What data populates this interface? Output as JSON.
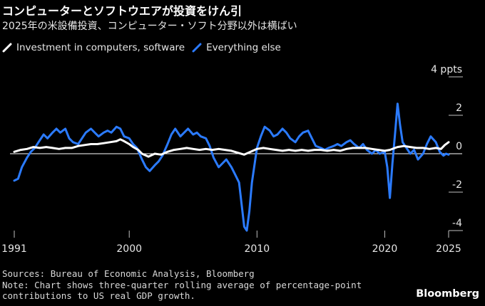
{
  "title": "コンピューターとソフトウエアが投資をけん引",
  "subtitle": "2025年の米設備投資、コンピューター・ソフト分野以外は横ばい",
  "legend": [
    {
      "label": "Investment in computers, software",
      "color": "#ffffff"
    },
    {
      "label": "Everything else",
      "color": "#2b7bff"
    }
  ],
  "footer": {
    "source": "Sources: Bureau of Economic Analysis, Bloomberg",
    "note1": "Note: Chart shows three-quarter rolling average of percentage-point",
    "note2": "contributions to US real GDP growth."
  },
  "brand": "Bloomberg",
  "chart_data": {
    "type": "line",
    "ylim": [
      -4.5,
      4.5
    ],
    "y_ticks": [
      4,
      2,
      0,
      -2,
      -4
    ],
    "y_tick_labels": [
      "4 ppts",
      "2",
      "0",
      "-2",
      "-4"
    ],
    "x_range": [
      1991,
      2025
    ],
    "x_ticks": [
      1991,
      2000,
      2010,
      2020,
      2025
    ],
    "x_tick_labels": [
      "1991",
      "2000",
      "2010",
      "2020",
      "2025"
    ],
    "zero_line": true,
    "series": [
      {
        "name": "Investment in computers, software",
        "color": "#ffffff",
        "points": [
          [
            1991.0,
            0.1
          ],
          [
            1991.5,
            0.2
          ],
          [
            1992.0,
            0.25
          ],
          [
            1992.5,
            0.35
          ],
          [
            1993.0,
            0.3
          ],
          [
            1993.5,
            0.35
          ],
          [
            1994.0,
            0.3
          ],
          [
            1994.5,
            0.25
          ],
          [
            1995.0,
            0.3
          ],
          [
            1995.5,
            0.3
          ],
          [
            1996.0,
            0.4
          ],
          [
            1996.5,
            0.45
          ],
          [
            1997.0,
            0.5
          ],
          [
            1997.5,
            0.5
          ],
          [
            1998.0,
            0.55
          ],
          [
            1998.5,
            0.6
          ],
          [
            1999.0,
            0.65
          ],
          [
            1999.3,
            0.75
          ],
          [
            1999.6,
            0.65
          ],
          [
            2000.0,
            0.5
          ],
          [
            2000.3,
            0.35
          ],
          [
            2000.7,
            0.2
          ],
          [
            2001.0,
            0.0
          ],
          [
            2001.5,
            -0.15
          ],
          [
            2002.0,
            0.0
          ],
          [
            2002.5,
            -0.05
          ],
          [
            2003.0,
            0.1
          ],
          [
            2003.5,
            0.2
          ],
          [
            2004.0,
            0.25
          ],
          [
            2004.5,
            0.3
          ],
          [
            2005.0,
            0.25
          ],
          [
            2005.5,
            0.2
          ],
          [
            2006.0,
            0.25
          ],
          [
            2006.5,
            0.2
          ],
          [
            2007.0,
            0.25
          ],
          [
            2007.5,
            0.2
          ],
          [
            2008.0,
            0.15
          ],
          [
            2008.5,
            0.05
          ],
          [
            2009.0,
            -0.05
          ],
          [
            2009.5,
            0.1
          ],
          [
            2010.0,
            0.25
          ],
          [
            2010.5,
            0.3
          ],
          [
            2011.0,
            0.25
          ],
          [
            2011.5,
            0.2
          ],
          [
            2012.0,
            0.15
          ],
          [
            2012.5,
            0.2
          ],
          [
            2013.0,
            0.15
          ],
          [
            2013.5,
            0.2
          ],
          [
            2014.0,
            0.15
          ],
          [
            2014.5,
            0.2
          ],
          [
            2015.0,
            0.2
          ],
          [
            2015.5,
            0.15
          ],
          [
            2016.0,
            0.2
          ],
          [
            2016.5,
            0.15
          ],
          [
            2017.0,
            0.25
          ],
          [
            2017.5,
            0.3
          ],
          [
            2018.0,
            0.3
          ],
          [
            2018.5,
            0.3
          ],
          [
            2019.0,
            0.25
          ],
          [
            2019.5,
            0.2
          ],
          [
            2020.0,
            0.15
          ],
          [
            2020.4,
            0.2
          ],
          [
            2020.8,
            0.3
          ],
          [
            2021.0,
            0.35
          ],
          [
            2021.5,
            0.4
          ],
          [
            2022.0,
            0.35
          ],
          [
            2022.5,
            0.3
          ],
          [
            2023.0,
            0.3
          ],
          [
            2023.5,
            0.25
          ],
          [
            2024.0,
            0.3
          ],
          [
            2024.4,
            0.25
          ],
          [
            2024.7,
            0.45
          ],
          [
            2025.0,
            0.6
          ]
        ]
      },
      {
        "name": "Everything else",
        "color": "#2b7bff",
        "points": [
          [
            1991.0,
            -1.4
          ],
          [
            1991.3,
            -1.3
          ],
          [
            1991.6,
            -0.7
          ],
          [
            1992.0,
            -0.2
          ],
          [
            1992.3,
            0.1
          ],
          [
            1992.6,
            0.3
          ],
          [
            1993.0,
            0.7
          ],
          [
            1993.3,
            1.0
          ],
          [
            1993.6,
            0.8
          ],
          [
            1994.0,
            1.1
          ],
          [
            1994.3,
            1.3
          ],
          [
            1994.6,
            1.1
          ],
          [
            1995.0,
            1.3
          ],
          [
            1995.3,
            0.8
          ],
          [
            1995.6,
            0.6
          ],
          [
            1996.0,
            0.5
          ],
          [
            1996.3,
            0.8
          ],
          [
            1996.6,
            1.1
          ],
          [
            1997.0,
            1.3
          ],
          [
            1997.3,
            1.1
          ],
          [
            1997.6,
            0.9
          ],
          [
            1998.0,
            1.1
          ],
          [
            1998.3,
            1.2
          ],
          [
            1998.6,
            1.1
          ],
          [
            1999.0,
            1.4
          ],
          [
            1999.3,
            1.3
          ],
          [
            1999.6,
            0.9
          ],
          [
            2000.0,
            0.8
          ],
          [
            2000.3,
            0.5
          ],
          [
            2000.6,
            0.3
          ],
          [
            2001.0,
            -0.3
          ],
          [
            2001.3,
            -0.7
          ],
          [
            2001.6,
            -0.9
          ],
          [
            2002.0,
            -0.6
          ],
          [
            2002.3,
            -0.4
          ],
          [
            2002.6,
            -0.1
          ],
          [
            2003.0,
            0.5
          ],
          [
            2003.3,
            1.0
          ],
          [
            2003.6,
            1.3
          ],
          [
            2004.0,
            0.9
          ],
          [
            2004.3,
            1.1
          ],
          [
            2004.6,
            1.3
          ],
          [
            2005.0,
            1.0
          ],
          [
            2005.3,
            1.1
          ],
          [
            2005.6,
            0.9
          ],
          [
            2006.0,
            0.8
          ],
          [
            2006.3,
            0.4
          ],
          [
            2006.6,
            -0.2
          ],
          [
            2007.0,
            -0.7
          ],
          [
            2007.3,
            -0.5
          ],
          [
            2007.6,
            -0.3
          ],
          [
            2008.0,
            -0.7
          ],
          [
            2008.3,
            -1.1
          ],
          [
            2008.6,
            -1.5
          ],
          [
            2009.0,
            -3.8
          ],
          [
            2009.2,
            -4.0
          ],
          [
            2009.4,
            -3.0
          ],
          [
            2009.6,
            -1.5
          ],
          [
            2010.0,
            0.3
          ],
          [
            2010.3,
            0.9
          ],
          [
            2010.6,
            1.4
          ],
          [
            2011.0,
            1.2
          ],
          [
            2011.3,
            0.9
          ],
          [
            2011.6,
            1.0
          ],
          [
            2012.0,
            1.3
          ],
          [
            2012.3,
            1.1
          ],
          [
            2012.6,
            0.8
          ],
          [
            2013.0,
            0.6
          ],
          [
            2013.3,
            0.9
          ],
          [
            2013.6,
            1.1
          ],
          [
            2014.0,
            1.2
          ],
          [
            2014.3,
            0.8
          ],
          [
            2014.6,
            0.4
          ],
          [
            2015.0,
            0.3
          ],
          [
            2015.3,
            0.2
          ],
          [
            2015.6,
            0.3
          ],
          [
            2016.0,
            0.4
          ],
          [
            2016.3,
            0.5
          ],
          [
            2016.6,
            0.4
          ],
          [
            2017.0,
            0.6
          ],
          [
            2017.3,
            0.7
          ],
          [
            2017.6,
            0.5
          ],
          [
            2018.0,
            0.3
          ],
          [
            2018.3,
            0.5
          ],
          [
            2018.6,
            0.2
          ],
          [
            2019.0,
            0.0
          ],
          [
            2019.3,
            0.2
          ],
          [
            2019.6,
            0.0
          ],
          [
            2020.0,
            0.1
          ],
          [
            2020.2,
            -0.7
          ],
          [
            2020.4,
            -2.3
          ],
          [
            2020.6,
            -0.5
          ],
          [
            2020.8,
            1.0
          ],
          [
            2021.0,
            2.6
          ],
          [
            2021.2,
            1.5
          ],
          [
            2021.4,
            0.6
          ],
          [
            2021.7,
            0.3
          ],
          [
            2022.0,
            0.0
          ],
          [
            2022.3,
            0.2
          ],
          [
            2022.6,
            -0.3
          ],
          [
            2023.0,
            0.0
          ],
          [
            2023.3,
            0.5
          ],
          [
            2023.6,
            0.9
          ],
          [
            2024.0,
            0.6
          ],
          [
            2024.3,
            0.1
          ],
          [
            2024.6,
            -0.1
          ],
          [
            2024.8,
            0.0
          ],
          [
            2025.0,
            -0.05
          ]
        ]
      }
    ]
  }
}
